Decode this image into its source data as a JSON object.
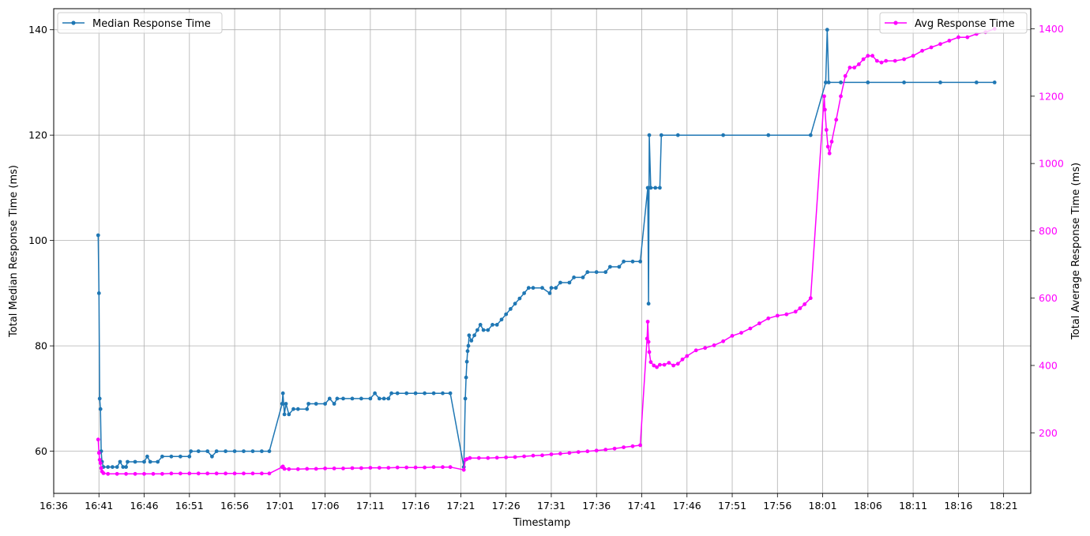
{
  "chart_data": {
    "type": "line",
    "xlabel": "Timestamp",
    "ylabel_left": "Total Median Response Time (ms)",
    "ylabel_right": "Total Average Response Time (ms)",
    "x_ticks": [
      "16:36",
      "16:41",
      "16:46",
      "16:51",
      "16:56",
      "17:01",
      "17:06",
      "17:11",
      "17:16",
      "17:21",
      "17:26",
      "17:31",
      "17:36",
      "17:41",
      "17:46",
      "17:51",
      "17:56",
      "18:01",
      "18:06",
      "18:11",
      "18:16",
      "18:21"
    ],
    "x_range": [
      "16:36",
      "18:24"
    ],
    "ylim_left": [
      52,
      144
    ],
    "ylim_right": [
      20,
      1460
    ],
    "y_ticks_left": [
      60,
      80,
      100,
      120,
      140
    ],
    "y_ticks_right": [
      200,
      400,
      600,
      800,
      1000,
      1200,
      1400
    ],
    "grid": true,
    "legend_left_position": "top-left",
    "legend_right_position": "top-right",
    "series": [
      {
        "name": "Median Response Time",
        "axis": "left",
        "color": "#1f77b4",
        "points": [
          [
            "16:40:55",
            101
          ],
          [
            "16:41:00",
            90
          ],
          [
            "16:41:05",
            70
          ],
          [
            "16:41:10",
            68
          ],
          [
            "16:41:15",
            60
          ],
          [
            "16:41:20",
            58
          ],
          [
            "16:41:30",
            57
          ],
          [
            "16:42:00",
            57
          ],
          [
            "16:42:30",
            57
          ],
          [
            "16:43:00",
            57
          ],
          [
            "16:43:20",
            58
          ],
          [
            "16:43:40",
            57
          ],
          [
            "16:44:00",
            57
          ],
          [
            "16:44:10",
            58
          ],
          [
            "16:45:00",
            58
          ],
          [
            "16:46:00",
            58
          ],
          [
            "16:46:20",
            59
          ],
          [
            "16:46:40",
            58
          ],
          [
            "16:47:30",
            58
          ],
          [
            "16:48:00",
            59
          ],
          [
            "16:49:00",
            59
          ],
          [
            "16:50:00",
            59
          ],
          [
            "16:51:00",
            59
          ],
          [
            "16:51:10",
            60
          ],
          [
            "16:52:00",
            60
          ],
          [
            "16:53:00",
            60
          ],
          [
            "16:53:30",
            59
          ],
          [
            "16:54:00",
            60
          ],
          [
            "16:55:00",
            60
          ],
          [
            "16:56:00",
            60
          ],
          [
            "16:57:00",
            60
          ],
          [
            "16:58:00",
            60
          ],
          [
            "16:59:00",
            60
          ],
          [
            "16:59:50",
            60
          ],
          [
            "17:01:15",
            69
          ],
          [
            "17:01:20",
            71
          ],
          [
            "17:01:30",
            67
          ],
          [
            "17:01:40",
            69
          ],
          [
            "17:02:00",
            67
          ],
          [
            "17:02:30",
            68
          ],
          [
            "17:03:00",
            68
          ],
          [
            "17:04:00",
            68
          ],
          [
            "17:04:10",
            69
          ],
          [
            "17:05:00",
            69
          ],
          [
            "17:06:00",
            69
          ],
          [
            "17:06:30",
            70
          ],
          [
            "17:07:00",
            69
          ],
          [
            "17:07:20",
            70
          ],
          [
            "17:08:00",
            70
          ],
          [
            "17:09:00",
            70
          ],
          [
            "17:10:00",
            70
          ],
          [
            "17:11:00",
            70
          ],
          [
            "17:11:30",
            71
          ],
          [
            "17:12:00",
            70
          ],
          [
            "17:12:30",
            70
          ],
          [
            "17:13:00",
            70
          ],
          [
            "17:13:20",
            71
          ],
          [
            "17:14:00",
            71
          ],
          [
            "17:15:00",
            71
          ],
          [
            "17:16:00",
            71
          ],
          [
            "17:17:00",
            71
          ],
          [
            "17:18:00",
            71
          ],
          [
            "17:19:00",
            71
          ],
          [
            "17:19:50",
            71
          ],
          [
            "17:21:20",
            57
          ],
          [
            "17:21:30",
            70
          ],
          [
            "17:21:35",
            74
          ],
          [
            "17:21:40",
            77
          ],
          [
            "17:21:45",
            79
          ],
          [
            "17:21:50",
            80
          ],
          [
            "17:21:55",
            82
          ],
          [
            "17:22:10",
            81
          ],
          [
            "17:22:30",
            82
          ],
          [
            "17:22:50",
            83
          ],
          [
            "17:23:10",
            84
          ],
          [
            "17:23:30",
            83
          ],
          [
            "17:24:00",
            83
          ],
          [
            "17:24:30",
            84
          ],
          [
            "17:25:00",
            84
          ],
          [
            "17:25:30",
            85
          ],
          [
            "17:26:00",
            86
          ],
          [
            "17:26:30",
            87
          ],
          [
            "17:27:00",
            88
          ],
          [
            "17:27:30",
            89
          ],
          [
            "17:28:00",
            90
          ],
          [
            "17:28:30",
            91
          ],
          [
            "17:29:00",
            91
          ],
          [
            "17:30:00",
            91
          ],
          [
            "17:30:50",
            90
          ],
          [
            "17:31:00",
            91
          ],
          [
            "17:31:30",
            91
          ],
          [
            "17:32:00",
            92
          ],
          [
            "17:33:00",
            92
          ],
          [
            "17:33:30",
            93
          ],
          [
            "17:34:30",
            93
          ],
          [
            "17:35:00",
            94
          ],
          [
            "17:36:00",
            94
          ],
          [
            "17:37:00",
            94
          ],
          [
            "17:37:30",
            95
          ],
          [
            "17:38:30",
            95
          ],
          [
            "17:39:00",
            96
          ],
          [
            "17:40:00",
            96
          ],
          [
            "17:40:50",
            96
          ],
          [
            "17:41:40",
            110
          ],
          [
            "17:41:45",
            88
          ],
          [
            "17:41:50",
            120
          ],
          [
            "17:42:00",
            110
          ],
          [
            "17:42:30",
            110
          ],
          [
            "17:43:00",
            110
          ],
          [
            "17:43:10",
            120
          ],
          [
            "17:45:00",
            120
          ],
          [
            "17:50:00",
            120
          ],
          [
            "17:55:00",
            120
          ],
          [
            "17:59:40",
            120
          ],
          [
            "18:01:20",
            130
          ],
          [
            "18:01:30",
            140
          ],
          [
            "18:01:40",
            130
          ],
          [
            "18:03:00",
            130
          ],
          [
            "18:06:00",
            130
          ],
          [
            "18:10:00",
            130
          ],
          [
            "18:14:00",
            130
          ],
          [
            "18:18:00",
            130
          ],
          [
            "18:20:00",
            130
          ]
        ]
      },
      {
        "name": "Avg Response Time",
        "axis": "right",
        "color": "#ff00ff",
        "points": [
          [
            "16:40:55",
            180
          ],
          [
            "16:41:00",
            140
          ],
          [
            "16:41:05",
            120
          ],
          [
            "16:41:10",
            110
          ],
          [
            "16:41:15",
            95
          ],
          [
            "16:41:20",
            85
          ],
          [
            "16:41:30",
            80
          ],
          [
            "16:42:00",
            78
          ],
          [
            "16:43:00",
            78
          ],
          [
            "16:44:00",
            78
          ],
          [
            "16:45:00",
            78
          ],
          [
            "16:46:00",
            78
          ],
          [
            "16:47:00",
            78
          ],
          [
            "16:48:00",
            78
          ],
          [
            "16:49:00",
            79
          ],
          [
            "16:50:00",
            79
          ],
          [
            "16:51:00",
            79
          ],
          [
            "16:52:00",
            79
          ],
          [
            "16:53:00",
            79
          ],
          [
            "16:54:00",
            79
          ],
          [
            "16:55:00",
            79
          ],
          [
            "16:56:00",
            79
          ],
          [
            "16:57:00",
            79
          ],
          [
            "16:58:00",
            79
          ],
          [
            "16:59:00",
            79
          ],
          [
            "16:59:50",
            79
          ],
          [
            "17:01:15",
            98
          ],
          [
            "17:01:20",
            100
          ],
          [
            "17:01:30",
            93
          ],
          [
            "17:02:00",
            92
          ],
          [
            "17:03:00",
            92
          ],
          [
            "17:04:00",
            93
          ],
          [
            "17:05:00",
            93
          ],
          [
            "17:06:00",
            94
          ],
          [
            "17:07:00",
            94
          ],
          [
            "17:08:00",
            94
          ],
          [
            "17:09:00",
            95
          ],
          [
            "17:10:00",
            95
          ],
          [
            "17:11:00",
            96
          ],
          [
            "17:12:00",
            96
          ],
          [
            "17:13:00",
            96
          ],
          [
            "17:14:00",
            97
          ],
          [
            "17:15:00",
            97
          ],
          [
            "17:16:00",
            97
          ],
          [
            "17:17:00",
            97
          ],
          [
            "17:18:00",
            98
          ],
          [
            "17:19:00",
            98
          ],
          [
            "17:19:50",
            98
          ],
          [
            "17:21:20",
            90
          ],
          [
            "17:21:30",
            120
          ],
          [
            "17:21:40",
            122
          ],
          [
            "17:22:00",
            125
          ],
          [
            "17:23:00",
            125
          ],
          [
            "17:24:00",
            125
          ],
          [
            "17:25:00",
            126
          ],
          [
            "17:26:00",
            127
          ],
          [
            "17:27:00",
            128
          ],
          [
            "17:28:00",
            130
          ],
          [
            "17:29:00",
            132
          ],
          [
            "17:30:00",
            133
          ],
          [
            "17:31:00",
            136
          ],
          [
            "17:32:00",
            138
          ],
          [
            "17:33:00",
            140
          ],
          [
            "17:34:00",
            143
          ],
          [
            "17:35:00",
            145
          ],
          [
            "17:36:00",
            147
          ],
          [
            "17:37:00",
            150
          ],
          [
            "17:38:00",
            153
          ],
          [
            "17:39:00",
            157
          ],
          [
            "17:40:00",
            160
          ],
          [
            "17:40:50",
            163
          ],
          [
            "17:41:35",
            480
          ],
          [
            "17:41:40",
            530
          ],
          [
            "17:41:45",
            470
          ],
          [
            "17:41:50",
            440
          ],
          [
            "17:42:00",
            410
          ],
          [
            "17:42:20",
            400
          ],
          [
            "17:42:40",
            395
          ],
          [
            "17:43:00",
            402
          ],
          [
            "17:43:30",
            402
          ],
          [
            "17:44:00",
            408
          ],
          [
            "17:44:30",
            400
          ],
          [
            "17:45:00",
            405
          ],
          [
            "17:45:30",
            418
          ],
          [
            "17:46:00",
            428
          ],
          [
            "17:47:00",
            445
          ],
          [
            "17:48:00",
            452
          ],
          [
            "17:49:00",
            460
          ],
          [
            "17:50:00",
            472
          ],
          [
            "17:51:00",
            488
          ],
          [
            "17:52:00",
            497
          ],
          [
            "17:53:00",
            510
          ],
          [
            "17:54:00",
            525
          ],
          [
            "17:55:00",
            540
          ],
          [
            "17:56:00",
            548
          ],
          [
            "17:57:00",
            552
          ],
          [
            "17:58:00",
            560
          ],
          [
            "17:58:30",
            570
          ],
          [
            "17:59:00",
            582
          ],
          [
            "17:59:40",
            600
          ],
          [
            "18:01:10",
            1200
          ],
          [
            "18:01:15",
            1160
          ],
          [
            "18:01:25",
            1100
          ],
          [
            "18:01:35",
            1050
          ],
          [
            "18:01:45",
            1030
          ],
          [
            "18:02:00",
            1065
          ],
          [
            "18:02:30",
            1130
          ],
          [
            "18:03:00",
            1200
          ],
          [
            "18:03:30",
            1260
          ],
          [
            "18:04:00",
            1285
          ],
          [
            "18:04:30",
            1285
          ],
          [
            "18:05:00",
            1295
          ],
          [
            "18:05:30",
            1310
          ],
          [
            "18:06:00",
            1320
          ],
          [
            "18:06:30",
            1320
          ],
          [
            "18:07:00",
            1305
          ],
          [
            "18:07:30",
            1300
          ],
          [
            "18:08:00",
            1305
          ],
          [
            "18:09:00",
            1305
          ],
          [
            "18:10:00",
            1310
          ],
          [
            "18:11:00",
            1320
          ],
          [
            "18:12:00",
            1335
          ],
          [
            "18:13:00",
            1345
          ],
          [
            "18:14:00",
            1355
          ],
          [
            "18:15:00",
            1365
          ],
          [
            "18:16:00",
            1375
          ],
          [
            "18:17:00",
            1375
          ],
          [
            "18:18:00",
            1385
          ],
          [
            "18:19:00",
            1390
          ],
          [
            "18:20:00",
            1400
          ]
        ]
      }
    ]
  }
}
